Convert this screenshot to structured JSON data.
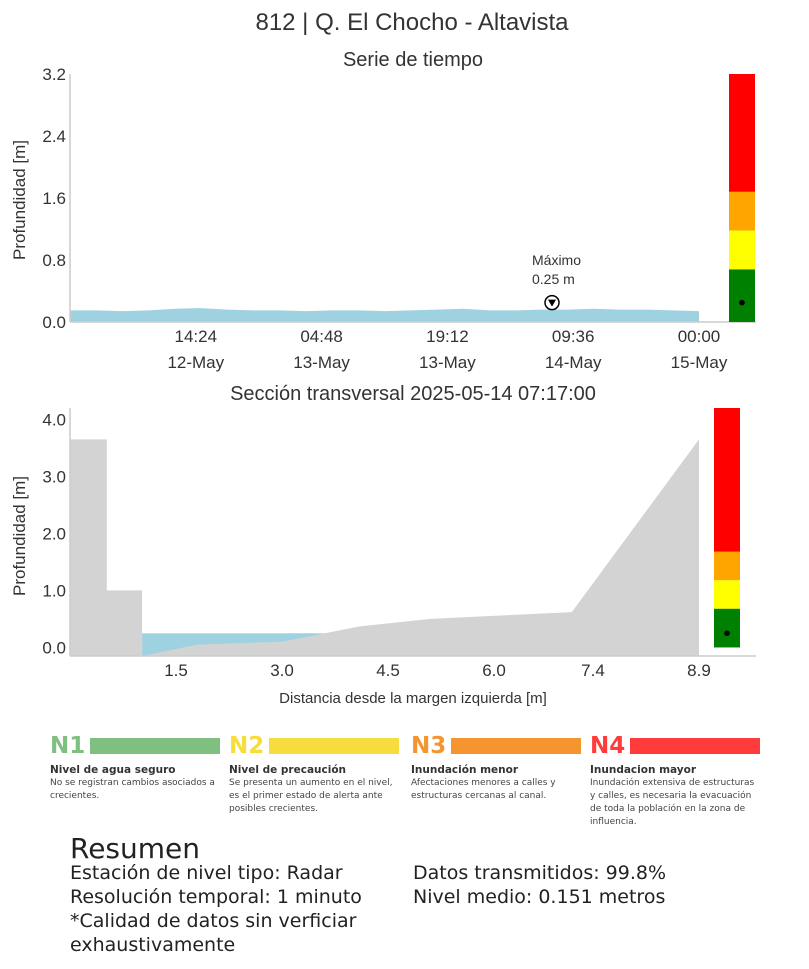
{
  "page_title": "812 | Q. El Chocho - Altavista",
  "chart_data": [
    {
      "type": "area",
      "title": "Serie de tiempo",
      "ylabel": "Profundidad [m]",
      "xlabel": "",
      "ylim": [
        0,
        3.2
      ],
      "yticks": [
        "0.0",
        "0.8",
        "1.6",
        "2.4",
        "3.2"
      ],
      "xticks": [
        {
          "time": "14:24",
          "date": "12-May"
        },
        {
          "time": "04:48",
          "date": "13-May"
        },
        {
          "time": "19:12",
          "date": "13-May"
        },
        {
          "time": "09:36",
          "date": "14-May"
        },
        {
          "time": "00:00",
          "date": "15-May"
        }
      ],
      "x_range": [
        "2025-05-12 00:00",
        "2025-05-15 00:00"
      ],
      "series": [
        {
          "x": [
            "2025-05-12 00:00",
            "2025-05-12 03:00",
            "2025-05-12 06:00",
            "2025-05-12 09:00",
            "2025-05-12 12:00",
            "2025-05-12 15:00",
            "2025-05-12 18:00",
            "2025-05-12 21:00",
            "2025-05-13 00:00",
            "2025-05-13 03:00",
            "2025-05-13 06:00",
            "2025-05-13 09:00",
            "2025-05-13 12:00",
            "2025-05-13 15:00",
            "2025-05-13 18:00",
            "2025-05-13 21:00",
            "2025-05-14 00:00",
            "2025-05-14 03:00",
            "2025-05-14 06:00",
            "2025-05-14 09:00",
            "2025-05-14 12:00",
            "2025-05-14 15:00",
            "2025-05-14 18:00",
            "2025-05-14 21:00",
            "2025-05-15 00:00"
          ],
          "values": [
            0.15,
            0.15,
            0.14,
            0.15,
            0.17,
            0.18,
            0.16,
            0.15,
            0.15,
            0.14,
            0.15,
            0.15,
            0.14,
            0.15,
            0.16,
            0.17,
            0.15,
            0.15,
            0.16,
            0.16,
            0.17,
            0.16,
            0.16,
            0.15,
            0.14
          ]
        }
      ],
      "annotation": {
        "label": "Máximo",
        "value_text": "0.25 m",
        "x": "2025-05-14 07:17",
        "y": 0.25
      },
      "level_bar": {
        "thresholds": [
          0,
          0.68,
          1.18,
          1.68,
          3.2
        ],
        "colors": [
          "#008000",
          "#ffff00",
          "#ffa500",
          "#ff0000"
        ],
        "current": 0.25
      },
      "water_color": "#9ed2e0",
      "grid": false
    },
    {
      "type": "area",
      "title": "Sección transversal 2025-05-14 07:17:00",
      "ylabel": "Profundidad [m]",
      "xlabel": "Distancia desde la margen izquierda [m]",
      "xlim": [
        0,
        8.9
      ],
      "ylim": [
        -0.15,
        4.2
      ],
      "xticks": [
        "1.5",
        "3.0",
        "4.5",
        "6.0",
        "7.4",
        "8.9"
      ],
      "yticks": [
        "0.0",
        "1.0",
        "2.0",
        "3.0",
        "4.0"
      ],
      "section_profile": {
        "x": [
          0,
          0.52,
          0.52,
          1.02,
          1.02,
          1.8,
          3.0,
          4.1,
          5.1,
          7.1,
          8.9
        ],
        "y": [
          3.65,
          3.65,
          1.0,
          1.0,
          -0.15,
          0.05,
          0.1,
          0.37,
          0.5,
          0.62,
          3.65
        ]
      },
      "water_level": 0.25,
      "level_bar": {
        "thresholds": [
          0,
          0.68,
          1.18,
          1.68,
          4.2
        ],
        "colors": [
          "#008000",
          "#ffff00",
          "#ffa500",
          "#ff0000"
        ],
        "current": 0.25
      },
      "ground_color": "#d3d3d3",
      "water_color": "#9ed2e0",
      "grid": false
    }
  ],
  "legend": [
    {
      "code": "N1",
      "color": "#7fbf7f",
      "title": "Nivel de agua seguro",
      "desc": "No se registran cambios asociados a crecientes."
    },
    {
      "code": "N2",
      "color": "#f7dc3e",
      "title": "Nivel de precaución",
      "desc": "Se presenta un aumento en el nivel, es el primer estado de alerta ante posibles crecientes."
    },
    {
      "code": "N3",
      "color": "#f59530",
      "title": "Inundación menor",
      "desc": "Afectaciones menores a calles y estructuras cercanas al canal."
    },
    {
      "code": "N4",
      "color": "#ff3b3b",
      "title": "Inundacion mayor",
      "desc": "Inundación extensiva de estructuras y calles, es necesaria la evacuación de toda la población en la zona de influencia."
    }
  ],
  "summary": {
    "title": "Resumen",
    "station_type": "Estación de nivel tipo: Radar",
    "resolution": "Resolución temporal: 1 minuto",
    "quality_1": "*Calidad de datos sin verficiar",
    "quality_2": "exhaustivamente",
    "transmitted": "Datos transmitidos: 99.8%",
    "mean_level": "Nivel medio: 0.151 metros"
  }
}
